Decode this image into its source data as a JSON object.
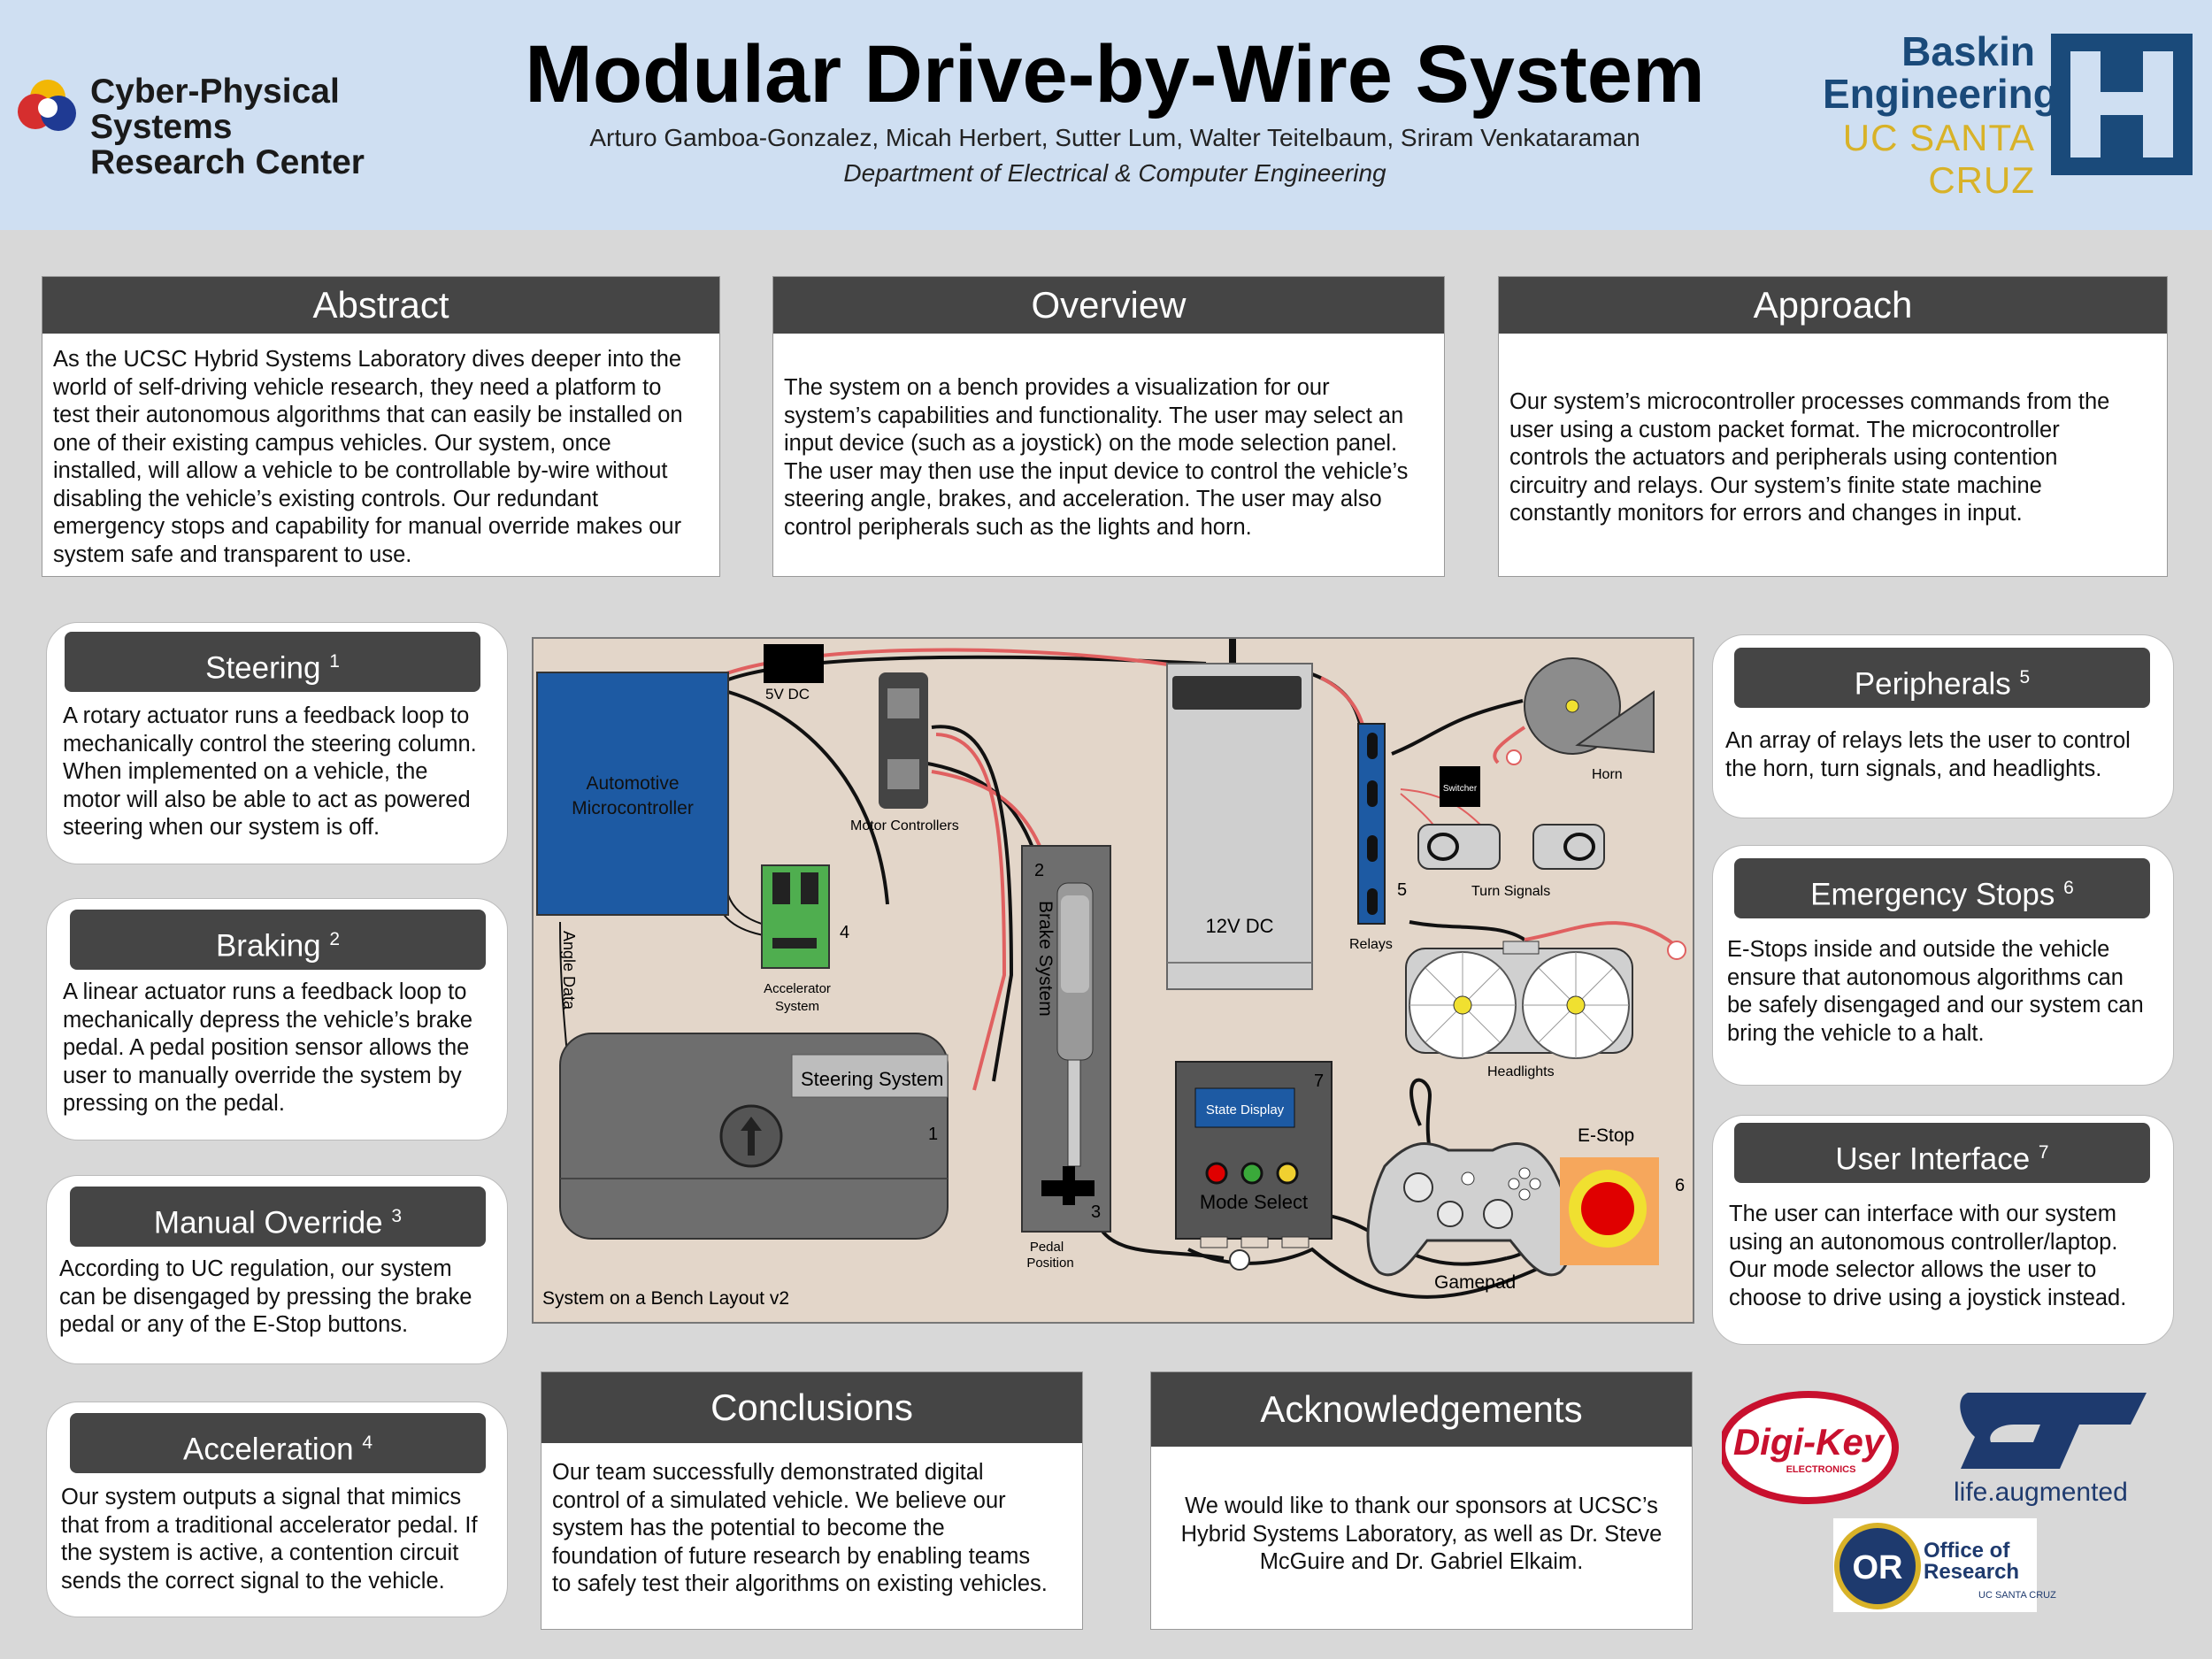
{
  "header": {
    "org_name_line1": "Cyber-Physical Systems",
    "org_name_line2": "Research Center",
    "title": "Modular Drive-by-Wire System",
    "authors": "Arturo Gamboa-Gonzalez, Micah Herbert, Sutter Lum, Walter Teitelbaum, Sriram Venkataraman",
    "department": "Department of Electrical & Computer Engineering",
    "school_line1": "Baskin",
    "school_line2": "Engineering",
    "school_line3": "UC SANTA CRUZ"
  },
  "sections": {
    "abstract": {
      "title": "Abstract",
      "lines": [
        "As the UCSC Hybrid Systems Laboratory dives deeper into the",
        "world of self-driving vehicle research, they need a platform to",
        "test their autonomous algorithms that can easily be installed on",
        "one of their existing campus vehicles. Our system, once",
        "installed, will allow a vehicle to be controllable by-wire without",
        "disabling the vehicle’s existing controls. Our redundant",
        "emergency stops and capability for manual override makes our",
        "system safe and transparent to use."
      ]
    },
    "overview": {
      "title": "Overview",
      "lines": [
        "The system on a bench provides a visualization for our",
        "system’s capabilities and functionality. The user may select an",
        "input device (such as a joystick) on the mode selection panel.",
        "The user may then use the input device to control the vehicle’s",
        "steering angle, brakes, and acceleration. The user may also",
        "control peripherals such as the lights and horn."
      ]
    },
    "approach": {
      "title": "Approach",
      "lines": [
        "Our system’s microcontroller processes commands from the",
        "user using a custom packet format. The microcontroller",
        "controls the actuators and peripherals using contention",
        "circuitry and relays. Our system’s finite state machine",
        "constantly monitors for errors and changes in input."
      ]
    },
    "conclusions": {
      "title": "Conclusions",
      "lines": [
        "Our team successfully demonstrated digital",
        "control of a simulated vehicle. We believe our",
        "system has the potential to become the",
        "foundation of future research by enabling teams",
        "to safely test their algorithms on existing vehicles."
      ]
    },
    "acknowledgements": {
      "title": "Acknowledgements",
      "lines": [
        "We would like to thank our sponsors at UCSC’s",
        "Hybrid Systems Laboratory, as well as Dr. Steve",
        "McGuire and Dr. Gabriel Elkaim."
      ]
    }
  },
  "features": {
    "steering": {
      "title": "Steering",
      "num": "1",
      "lines": [
        "A rotary actuator runs a feedback loop to",
        "mechanically control the steering column.",
        "When implemented on a vehicle, the",
        "motor will also be able to act as powered",
        "steering when our system is off."
      ]
    },
    "braking": {
      "title": "Braking",
      "num": "2",
      "lines": [
        "A linear actuator runs a feedback loop to",
        "mechanically depress the vehicle’s brake",
        "pedal. A pedal position sensor allows the",
        "user to manually override the system by",
        "pressing on the pedal."
      ]
    },
    "manual_override": {
      "title": "Manual Override",
      "num": "3",
      "lines": [
        "According to UC regulation, our system",
        "can be disengaged by pressing the brake",
        "pedal or any of the E-Stop buttons."
      ]
    },
    "acceleration": {
      "title": "Acceleration",
      "num": "4",
      "lines": [
        "Our system outputs a signal that mimics",
        "that from a traditional accelerator pedal. If",
        "the system is active, a contention circuit",
        "sends the correct signal to the vehicle."
      ]
    },
    "peripherals": {
      "title": "Peripherals",
      "num": "5",
      "lines": [
        "An array of relays lets the user to control",
        "the horn, turn signals, and headlights."
      ]
    },
    "estops": {
      "title": "Emergency Stops",
      "num": "6",
      "lines": [
        "E-Stops inside and outside the vehicle",
        "ensure that autonomous algorithms can",
        "be safely disengaged and our system can",
        "bring the vehicle to a halt."
      ]
    },
    "ui": {
      "title": "User Interface",
      "num": "7",
      "lines": [
        "The user can interface with our system",
        "using an autonomous controller/laptop.",
        "Our mode selector allows the user to",
        "choose to drive using a joystick instead."
      ]
    }
  },
  "diagram": {
    "caption": "System on a Bench Layout v2",
    "microcontroller_line1": "Automotive",
    "microcontroller_line2": "Microcontroller",
    "label_5v": "5V DC",
    "label_motor_controllers": "Motor Controllers",
    "label_12v": "12V DC",
    "label_brake_system": "Brake System",
    "label_accel_line1": "Accelerator",
    "label_accel_line2": "System",
    "label_angle_data": "Angle Data",
    "label_steering_system": "Steering System",
    "label_pedal_line1": "Pedal",
    "label_pedal_line2": "Position",
    "label_relays": "Relays",
    "label_switcher": "Switcher",
    "label_horn": "Horn",
    "label_turn_signals": "Turn Signals",
    "label_headlights": "Headlights",
    "label_state_display": "State Display",
    "label_mode_select": "Mode Select",
    "label_gamepad": "Gamepad",
    "label_estop": "E-Stop",
    "num1": "1",
    "num2": "2",
    "num3": "3",
    "num4": "4",
    "num5": "5",
    "num6": "6",
    "num7": "7"
  },
  "sponsors": {
    "digikey": "Digi-Key",
    "digikey_sub": "ELECTRONICS",
    "st_tagline": "life.augmented",
    "office_line1": "Office of",
    "office_line2": "Research",
    "office_sub": "UC SANTA CRUZ",
    "office_mark": "OR"
  },
  "colors": {
    "header_bg": "#cfdff2",
    "section_bar": "#454545",
    "micro_blue": "#1d5aa3",
    "wire_red": "#e06060",
    "estop_red": "#e00000",
    "ucsc_gold": "#d8b228",
    "baskin_blue": "#1a4a7a"
  }
}
